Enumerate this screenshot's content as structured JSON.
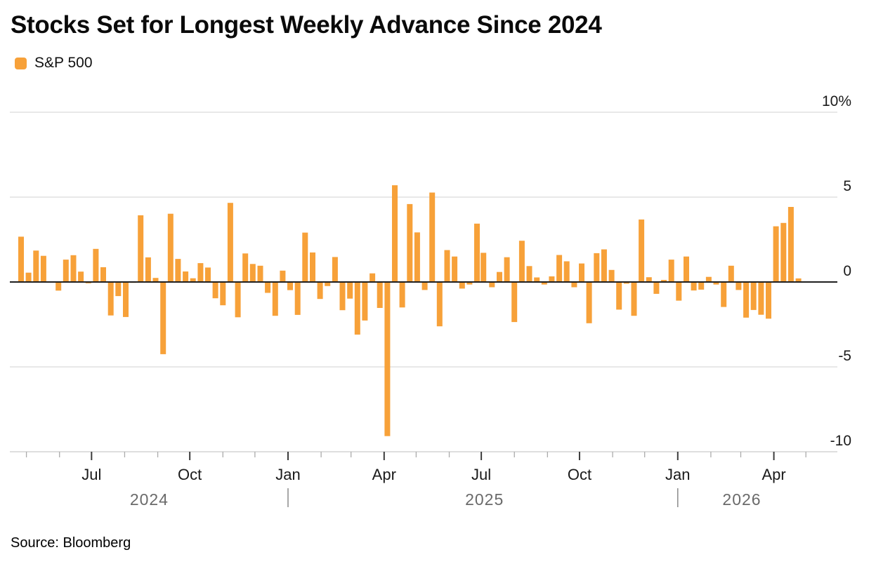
{
  "header": {
    "title": "Stocks Set for Longest Weekly Advance Since 2024"
  },
  "legend": {
    "label": "S&P 500"
  },
  "source": {
    "text": "Source: Bloomberg"
  },
  "colors": {
    "bar": "#F7A139",
    "zero_line": "#1f1f1f",
    "gridline": "#e0e0e0",
    "axis_line": "#d4d4d4",
    "major_tick": "#3c3c3c",
    "minor_tick": "#ababab",
    "axis_text": "#1a1a1a",
    "year_text": "#6a6a6a"
  },
  "chart_data": {
    "type": "bar",
    "title": "Stocks Set for Longest Weekly Advance Since 2024",
    "series_name": "S&P 500",
    "unit": "%",
    "ylabel": "",
    "xlabel": "",
    "ylim": [
      -10,
      10
    ],
    "grid": "horizontal",
    "legend_position": "top-left",
    "y_ticks": [
      {
        "value": 10,
        "label": "10%"
      },
      {
        "value": 5,
        "label": "5"
      },
      {
        "value": 0,
        "label": "0"
      },
      {
        "value": -5,
        "label": "-5"
      },
      {
        "value": -10,
        "label": "-10"
      }
    ],
    "x_major_ticks": [
      {
        "month": "2024-07",
        "label": "Jul"
      },
      {
        "month": "2024-10",
        "label": "Oct"
      },
      {
        "month": "2025-01",
        "label": "Jan"
      },
      {
        "month": "2025-04",
        "label": "Apr"
      },
      {
        "month": "2025-07",
        "label": "Jul"
      },
      {
        "month": "2025-10",
        "label": "Oct"
      },
      {
        "month": "2026-01",
        "label": "Jan"
      },
      {
        "month": "2026-04",
        "label": "Apr"
      }
    ],
    "x_minor_tick_months": [
      "2024-05",
      "2024-06",
      "2024-08",
      "2024-09",
      "2024-11",
      "2024-12",
      "2025-02",
      "2025-03",
      "2025-05",
      "2025-06",
      "2025-08",
      "2025-09",
      "2025-11",
      "2025-12",
      "2026-02",
      "2026-03",
      "2026-05"
    ],
    "year_labels": [
      {
        "label": "2024",
        "center_date": "2024-08-24"
      },
      {
        "label": "2025",
        "center_date": "2025-07-04"
      },
      {
        "label": "2026",
        "center_date": "2026-03-02"
      }
    ],
    "year_separator_dates": [
      "2025-01-01",
      "2026-01-01"
    ],
    "weeks": [
      {
        "week_ending": "2024-04-26",
        "pct": 2.67
      },
      {
        "week_ending": "2024-05-03",
        "pct": 0.55
      },
      {
        "week_ending": "2024-05-10",
        "pct": 1.85
      },
      {
        "week_ending": "2024-05-17",
        "pct": 1.54
      },
      {
        "week_ending": "2024-05-24",
        "pct": 0.03
      },
      {
        "week_ending": "2024-05-31",
        "pct": -0.51
      },
      {
        "week_ending": "2024-06-07",
        "pct": 1.32
      },
      {
        "week_ending": "2024-06-14",
        "pct": 1.58
      },
      {
        "week_ending": "2024-06-21",
        "pct": 0.61
      },
      {
        "week_ending": "2024-06-28",
        "pct": -0.08
      },
      {
        "week_ending": "2024-07-05",
        "pct": 1.95
      },
      {
        "week_ending": "2024-07-12",
        "pct": 0.87
      },
      {
        "week_ending": "2024-07-19",
        "pct": -1.97
      },
      {
        "week_ending": "2024-07-26",
        "pct": -0.83
      },
      {
        "week_ending": "2024-08-02",
        "pct": -2.06
      },
      {
        "week_ending": "2024-08-09",
        "pct": -0.05
      },
      {
        "week_ending": "2024-08-16",
        "pct": 3.93
      },
      {
        "week_ending": "2024-08-23",
        "pct": 1.45
      },
      {
        "week_ending": "2024-08-30",
        "pct": 0.24
      },
      {
        "week_ending": "2024-09-06",
        "pct": -4.25
      },
      {
        "week_ending": "2024-09-13",
        "pct": 4.02
      },
      {
        "week_ending": "2024-09-20",
        "pct": 1.36
      },
      {
        "week_ending": "2024-09-27",
        "pct": 0.62
      },
      {
        "week_ending": "2024-10-04",
        "pct": 0.22
      },
      {
        "week_ending": "2024-10-11",
        "pct": 1.11
      },
      {
        "week_ending": "2024-10-18",
        "pct": 0.85
      },
      {
        "week_ending": "2024-10-25",
        "pct": -0.96
      },
      {
        "week_ending": "2024-11-01",
        "pct": -1.37
      },
      {
        "week_ending": "2024-11-08",
        "pct": 4.66
      },
      {
        "week_ending": "2024-11-15",
        "pct": -2.08
      },
      {
        "week_ending": "2024-11-22",
        "pct": 1.68
      },
      {
        "week_ending": "2024-11-29",
        "pct": 1.06
      },
      {
        "week_ending": "2024-12-06",
        "pct": 0.96
      },
      {
        "week_ending": "2024-12-13",
        "pct": -0.64
      },
      {
        "week_ending": "2024-12-20",
        "pct": -1.99
      },
      {
        "week_ending": "2024-12-27",
        "pct": 0.67
      },
      {
        "week_ending": "2025-01-03",
        "pct": -0.48
      },
      {
        "week_ending": "2025-01-10",
        "pct": -1.94
      },
      {
        "week_ending": "2025-01-17",
        "pct": 2.91
      },
      {
        "week_ending": "2025-01-24",
        "pct": 1.74
      },
      {
        "week_ending": "2025-01-31",
        "pct": -1.0
      },
      {
        "week_ending": "2025-02-07",
        "pct": -0.24
      },
      {
        "week_ending": "2025-02-14",
        "pct": 1.47
      },
      {
        "week_ending": "2025-02-21",
        "pct": -1.66
      },
      {
        "week_ending": "2025-02-28",
        "pct": -0.98
      },
      {
        "week_ending": "2025-03-07",
        "pct": -3.1
      },
      {
        "week_ending": "2025-03-14",
        "pct": -2.27
      },
      {
        "week_ending": "2025-03-21",
        "pct": 0.51
      },
      {
        "week_ending": "2025-03-28",
        "pct": -1.53
      },
      {
        "week_ending": "2025-04-04",
        "pct": -9.08
      },
      {
        "week_ending": "2025-04-11",
        "pct": 5.7
      },
      {
        "week_ending": "2025-04-18",
        "pct": -1.5
      },
      {
        "week_ending": "2025-04-25",
        "pct": 4.59
      },
      {
        "week_ending": "2025-05-02",
        "pct": 2.92
      },
      {
        "week_ending": "2025-05-09",
        "pct": -0.47
      },
      {
        "week_ending": "2025-05-16",
        "pct": 5.27
      },
      {
        "week_ending": "2025-05-23",
        "pct": -2.61
      },
      {
        "week_ending": "2025-05-30",
        "pct": 1.88
      },
      {
        "week_ending": "2025-06-06",
        "pct": 1.5
      },
      {
        "week_ending": "2025-06-13",
        "pct": -0.39
      },
      {
        "week_ending": "2025-06-20",
        "pct": -0.15
      },
      {
        "week_ending": "2025-06-27",
        "pct": 3.44
      },
      {
        "week_ending": "2025-07-03",
        "pct": 1.72
      },
      {
        "week_ending": "2025-07-11",
        "pct": -0.31
      },
      {
        "week_ending": "2025-07-18",
        "pct": 0.59
      },
      {
        "week_ending": "2025-07-25",
        "pct": 1.46
      },
      {
        "week_ending": "2025-08-01",
        "pct": -2.36
      },
      {
        "week_ending": "2025-08-08",
        "pct": 2.43
      },
      {
        "week_ending": "2025-08-15",
        "pct": 0.94
      },
      {
        "week_ending": "2025-08-22",
        "pct": 0.27
      },
      {
        "week_ending": "2025-08-29",
        "pct": -0.15
      },
      {
        "week_ending": "2025-09-05",
        "pct": 0.33
      },
      {
        "week_ending": "2025-09-12",
        "pct": 1.59
      },
      {
        "week_ending": "2025-09-19",
        "pct": 1.22
      },
      {
        "week_ending": "2025-09-26",
        "pct": -0.31
      },
      {
        "week_ending": "2025-10-03",
        "pct": 1.09
      },
      {
        "week_ending": "2025-10-10",
        "pct": -2.43
      },
      {
        "week_ending": "2025-10-17",
        "pct": 1.7
      },
      {
        "week_ending": "2025-10-24",
        "pct": 1.92
      },
      {
        "week_ending": "2025-10-31",
        "pct": 0.71
      },
      {
        "week_ending": "2025-11-07",
        "pct": -1.63
      },
      {
        "week_ending": "2025-11-14",
        "pct": -0.1
      },
      {
        "week_ending": "2025-11-21",
        "pct": -1.99
      },
      {
        "week_ending": "2025-11-28",
        "pct": 3.68
      },
      {
        "week_ending": "2025-12-05",
        "pct": 0.28
      },
      {
        "week_ending": "2025-12-12",
        "pct": -0.7
      },
      {
        "week_ending": "2025-12-19",
        "pct": 0.12
      },
      {
        "week_ending": "2025-12-26",
        "pct": 1.32
      },
      {
        "week_ending": "2026-01-02",
        "pct": -1.1
      },
      {
        "week_ending": "2026-01-09",
        "pct": 1.5
      },
      {
        "week_ending": "2026-01-16",
        "pct": -0.5
      },
      {
        "week_ending": "2026-01-23",
        "pct": -0.45
      },
      {
        "week_ending": "2026-01-30",
        "pct": 0.3
      },
      {
        "week_ending": "2026-02-06",
        "pct": -0.15
      },
      {
        "week_ending": "2026-02-13",
        "pct": -1.47
      },
      {
        "week_ending": "2026-02-20",
        "pct": 0.96
      },
      {
        "week_ending": "2026-02-27",
        "pct": -0.47
      },
      {
        "week_ending": "2026-03-06",
        "pct": -2.1
      },
      {
        "week_ending": "2026-03-13",
        "pct": -1.65
      },
      {
        "week_ending": "2026-03-20",
        "pct": -1.93
      },
      {
        "week_ending": "2026-03-27",
        "pct": -2.16
      },
      {
        "week_ending": "2026-04-03",
        "pct": 3.28
      },
      {
        "week_ending": "2026-04-10",
        "pct": 3.48
      },
      {
        "week_ending": "2026-04-17",
        "pct": 4.42
      },
      {
        "week_ending": "2026-04-24",
        "pct": 0.21
      }
    ]
  }
}
